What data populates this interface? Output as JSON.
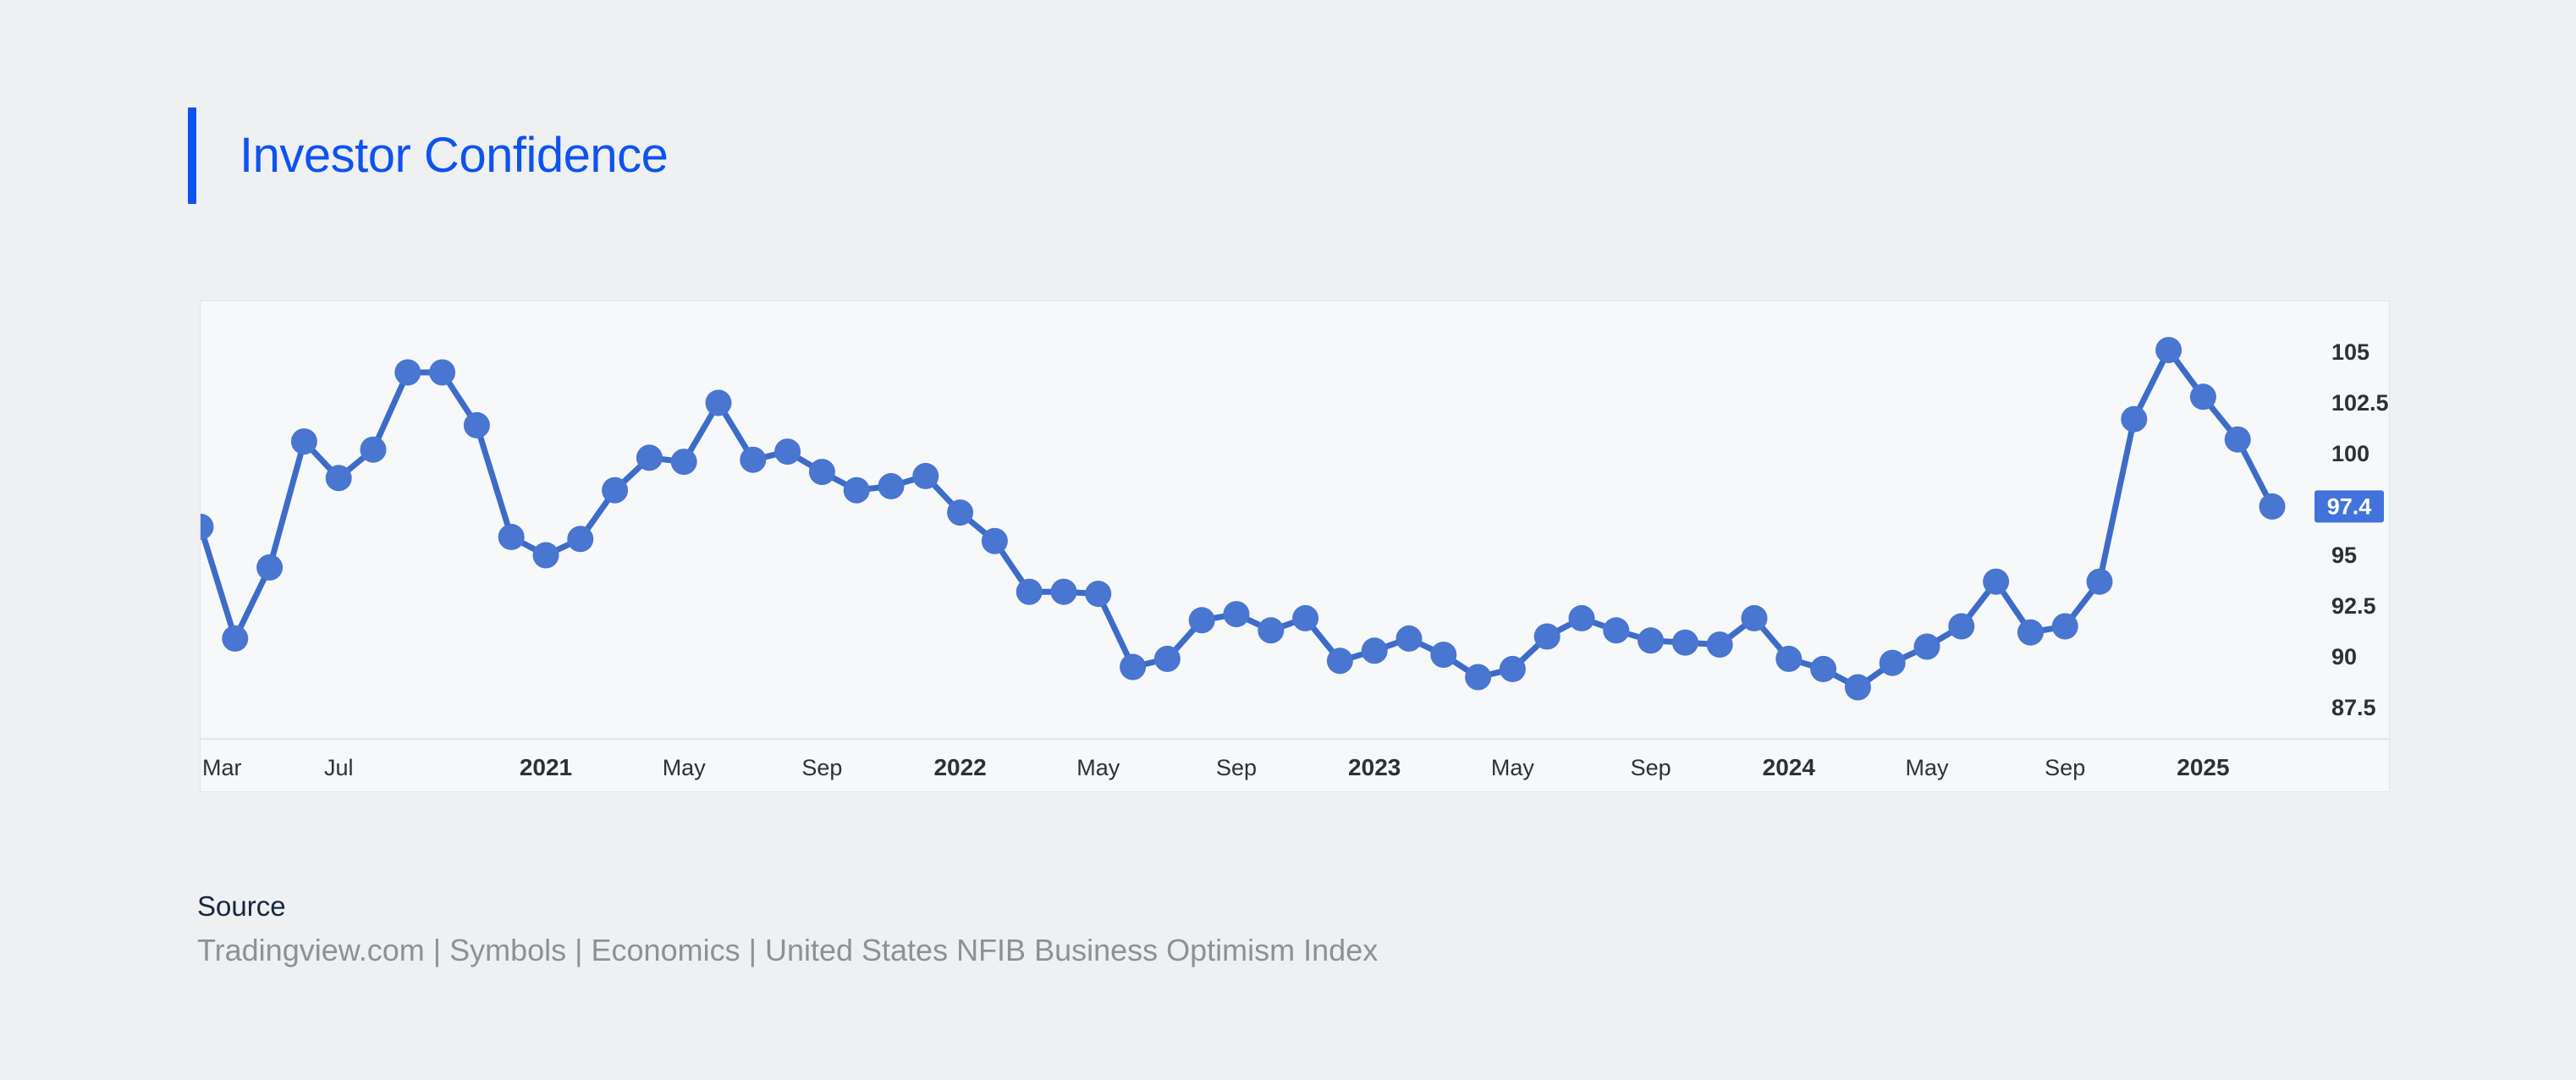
{
  "page": {
    "title": "Investor Confidence",
    "accent_color": "#0d53ef"
  },
  "chart_data": {
    "type": "line",
    "name": "United States NFIB Business Optimism Index",
    "x": [
      "Mar 2020",
      "Apr 2020",
      "May 2020",
      "Jun 2020",
      "Jul 2020",
      "Aug 2020",
      "Sep 2020",
      "Oct 2020",
      "Nov 2020",
      "Dec 2020",
      "Jan 2021",
      "Feb 2021",
      "Mar 2021",
      "Apr 2021",
      "May 2021",
      "Jun 2021",
      "Jul 2021",
      "Aug 2021",
      "Sep 2021",
      "Oct 2021",
      "Nov 2021",
      "Dec 2021",
      "Jan 2022",
      "Feb 2022",
      "Mar 2022",
      "Apr 2022",
      "May 2022",
      "Jun 2022",
      "Jul 2022",
      "Aug 2022",
      "Sep 2022",
      "Oct 2022",
      "Nov 2022",
      "Dec 2022",
      "Jan 2023",
      "Feb 2023",
      "Mar 2023",
      "Apr 2023",
      "May 2023",
      "Jun 2023",
      "Jul 2023",
      "Aug 2023",
      "Sep 2023",
      "Oct 2023",
      "Nov 2023",
      "Dec 2023",
      "Jan 2024",
      "Feb 2024",
      "Mar 2024",
      "Apr 2024",
      "May 2024",
      "Jun 2024",
      "Jul 2024",
      "Aug 2024",
      "Sep 2024",
      "Oct 2024",
      "Nov 2024",
      "Dec 2024",
      "Jan 2025",
      "Feb 2025",
      "Mar 2025"
    ],
    "values": [
      96.4,
      90.9,
      94.4,
      100.6,
      98.8,
      100.2,
      104.0,
      104.0,
      101.4,
      95.9,
      95.0,
      95.8,
      98.2,
      99.8,
      99.6,
      102.5,
      99.7,
      100.1,
      99.1,
      98.2,
      98.4,
      98.9,
      97.1,
      95.7,
      93.2,
      93.2,
      93.1,
      89.5,
      89.9,
      91.8,
      92.1,
      91.3,
      91.9,
      89.8,
      90.3,
      90.9,
      90.1,
      89.0,
      89.4,
      91.0,
      91.9,
      91.3,
      90.8,
      90.7,
      90.6,
      91.9,
      89.9,
      89.4,
      88.5,
      89.7,
      90.5,
      91.5,
      93.7,
      91.2,
      91.5,
      93.7,
      101.7,
      105.1,
      102.8,
      100.7,
      97.4
    ],
    "x_ticks": [
      {
        "index": 0,
        "label": "Mar",
        "year": false
      },
      {
        "index": 4,
        "label": "Jul",
        "year": false
      },
      {
        "index": 10,
        "label": "2021",
        "year": true
      },
      {
        "index": 14,
        "label": "May",
        "year": false
      },
      {
        "index": 18,
        "label": "Sep",
        "year": false
      },
      {
        "index": 22,
        "label": "2022",
        "year": true
      },
      {
        "index": 26,
        "label": "May",
        "year": false
      },
      {
        "index": 30,
        "label": "Sep",
        "year": false
      },
      {
        "index": 34,
        "label": "2023",
        "year": true
      },
      {
        "index": 38,
        "label": "May",
        "year": false
      },
      {
        "index": 42,
        "label": "Sep",
        "year": false
      },
      {
        "index": 46,
        "label": "2024",
        "year": true
      },
      {
        "index": 50,
        "label": "May",
        "year": false
      },
      {
        "index": 54,
        "label": "Sep",
        "year": false
      },
      {
        "index": 58,
        "label": "2025",
        "year": true
      }
    ],
    "y_ticks": [
      "105",
      "102.5",
      "100",
      "95",
      "92.5",
      "90",
      "87.5"
    ],
    "last_price": {
      "value": 97.4,
      "label": "97.4"
    },
    "ylim": [
      86.0,
      107.5
    ],
    "grid": false,
    "legend": "none",
    "colors": {
      "marker": "#4876d0",
      "line": "#3d6cc8",
      "price_tag_bg": "#4273dc",
      "price_tag_text": "#ffffff",
      "tick_text": "#2f3035",
      "axis_line": "#e2e3e7"
    }
  },
  "source": {
    "heading": "Source",
    "text": "Tradingview.com | Symbols | Economics | United States NFIB Business Optimism Index"
  }
}
